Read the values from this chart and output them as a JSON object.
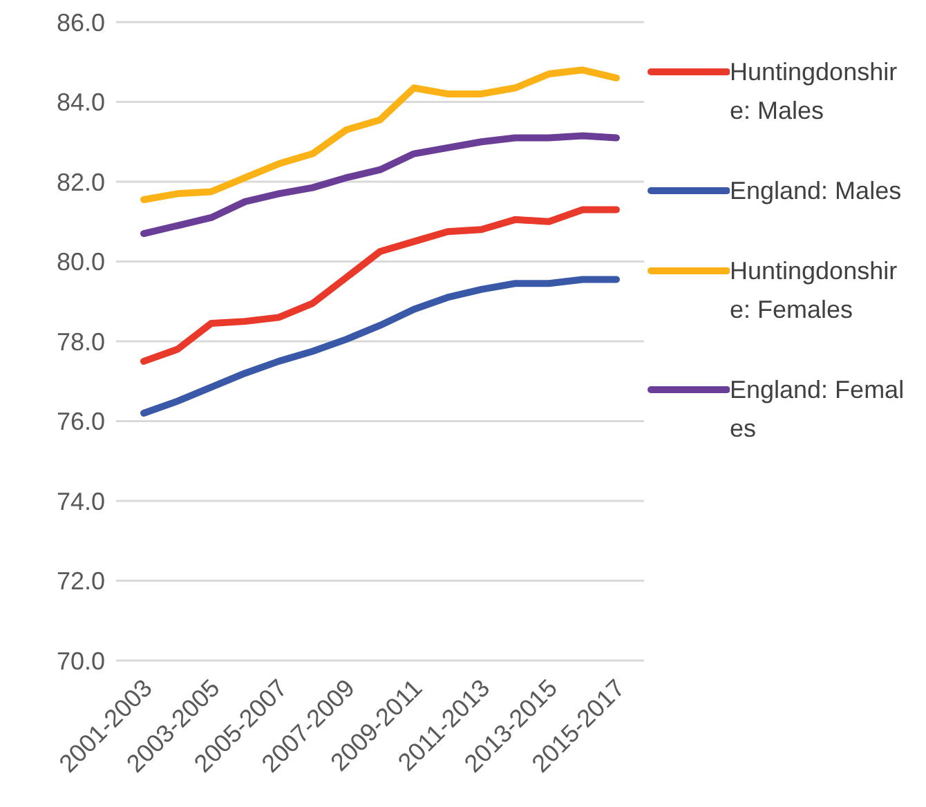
{
  "chart_data": {
    "type": "line",
    "categories": [
      "2001-2003",
      null,
      "2003-2005",
      null,
      "2005-2007",
      null,
      "2007-2009",
      null,
      "2009-2011",
      null,
      "2011-2013",
      null,
      "2013-2015",
      null,
      "2015-2017"
    ],
    "series": [
      {
        "name": "Huntingdonshire: Males",
        "color": "#e8392a",
        "values": [
          77.5,
          77.8,
          78.45,
          78.5,
          78.6,
          78.95,
          79.6,
          80.25,
          80.5,
          80.75,
          80.8,
          81.05,
          81.0,
          81.3,
          81.3
        ]
      },
      {
        "name": "England: Males",
        "color": "#3a58a8",
        "values": [
          76.2,
          76.5,
          76.85,
          77.2,
          77.5,
          77.75,
          78.05,
          78.4,
          78.8,
          79.1,
          79.3,
          79.45,
          79.45,
          79.55,
          79.55
        ]
      },
      {
        "name": "Huntingdonshire: Females",
        "color": "#fbb217",
        "values": [
          81.55,
          81.7,
          81.75,
          82.1,
          82.45,
          82.7,
          83.3,
          83.55,
          84.35,
          84.2,
          84.2,
          84.35,
          84.7,
          84.8,
          84.6
        ]
      },
      {
        "name": "England: Females",
        "color": "#6a3d97",
        "values": [
          80.7,
          80.9,
          81.1,
          81.5,
          81.7,
          81.85,
          82.1,
          82.3,
          82.7,
          82.85,
          83.0,
          83.1,
          83.1,
          83.15,
          83.1
        ]
      }
    ],
    "ylim": [
      70,
      86
    ],
    "yticks": [
      {
        "value": 70,
        "label": "70.0"
      },
      {
        "value": 72,
        "label": "72.0"
      },
      {
        "value": 74,
        "label": "74.0"
      },
      {
        "value": 76,
        "label": "76.0"
      },
      {
        "value": 78,
        "label": "78.0"
      },
      {
        "value": 80,
        "label": "80.0"
      },
      {
        "value": 82,
        "label": "82.0"
      },
      {
        "value": 84,
        "label": "84.0"
      },
      {
        "value": 86,
        "label": "86.0"
      }
    ],
    "grid": "y",
    "legend": "right",
    "marker": "none",
    "line_style": "solid"
  }
}
